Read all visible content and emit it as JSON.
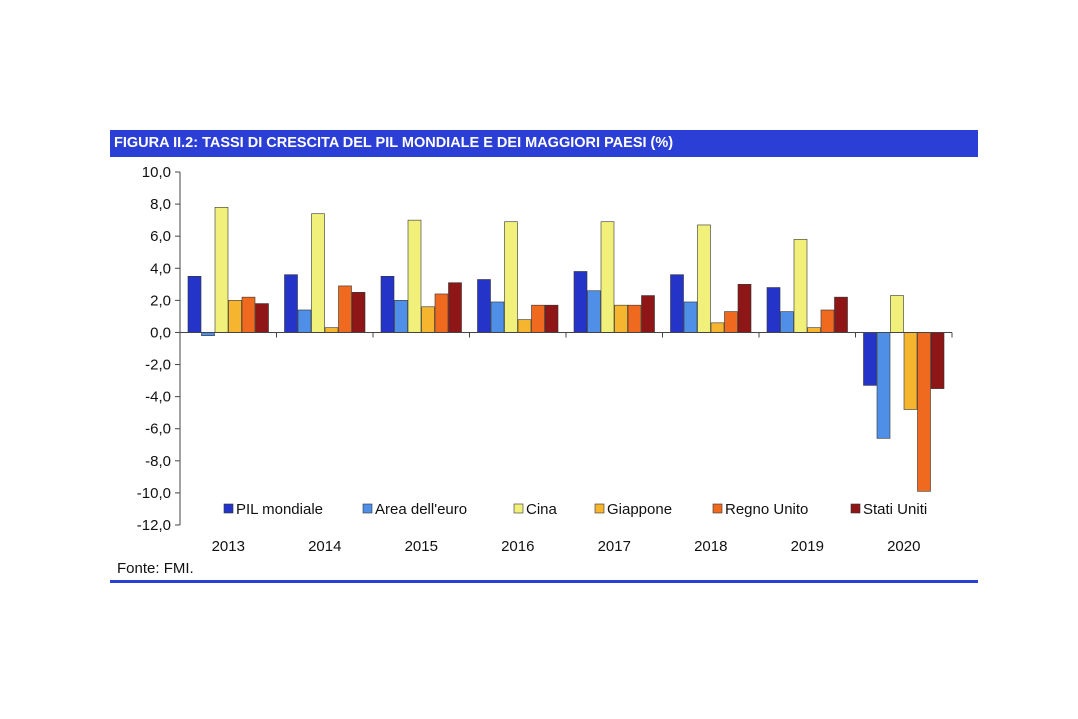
{
  "title": "FIGURA II.2: TASSI DI CRESCITA DEL PIL MONDIALE E DEI MAGGIORI PAESI (%)",
  "source": "Fonte: FMI.",
  "chart_data": {
    "type": "bar",
    "categories": [
      "2013",
      "2014",
      "2015",
      "2016",
      "2017",
      "2018",
      "2019",
      "2020"
    ],
    "ylim": [
      -12,
      10
    ],
    "yticks": [
      10,
      8,
      6,
      4,
      2,
      0,
      -2,
      -4,
      -6,
      -8,
      -10,
      -12
    ],
    "ytick_labels": [
      "10,0",
      "8,0",
      "6,0",
      "4,0",
      "2,0",
      "0,0",
      "-2,0",
      "-4,0",
      "-6,0",
      "-8,0",
      "-10,0",
      "-12,0"
    ],
    "grid": false,
    "legend_position": "bottom",
    "series": [
      {
        "name": "PIL mondiale",
        "color": "#2434c8",
        "values": [
          3.5,
          3.6,
          3.5,
          3.3,
          3.8,
          3.6,
          2.8,
          -3.3
        ]
      },
      {
        "name": "Area dell'euro",
        "color": "#4f8fe8",
        "values": [
          -0.2,
          1.4,
          2.0,
          1.9,
          2.6,
          1.9,
          1.3,
          -6.6
        ]
      },
      {
        "name": "Cina",
        "color": "#f0f07a",
        "values": [
          7.8,
          7.4,
          7.0,
          6.9,
          6.9,
          6.7,
          5.8,
          2.3
        ]
      },
      {
        "name": "Giappone",
        "color": "#f5b52e",
        "values": [
          2.0,
          0.3,
          1.6,
          0.8,
          1.7,
          0.6,
          0.3,
          -4.8
        ]
      },
      {
        "name": "Regno Unito",
        "color": "#ef6a1f",
        "values": [
          2.2,
          2.9,
          2.4,
          1.7,
          1.7,
          1.3,
          1.4,
          -9.9
        ]
      },
      {
        "name": "Stati Uniti",
        "color": "#8e1616",
        "values": [
          1.8,
          2.5,
          3.1,
          1.7,
          2.3,
          3.0,
          2.2,
          -3.5
        ]
      }
    ]
  }
}
